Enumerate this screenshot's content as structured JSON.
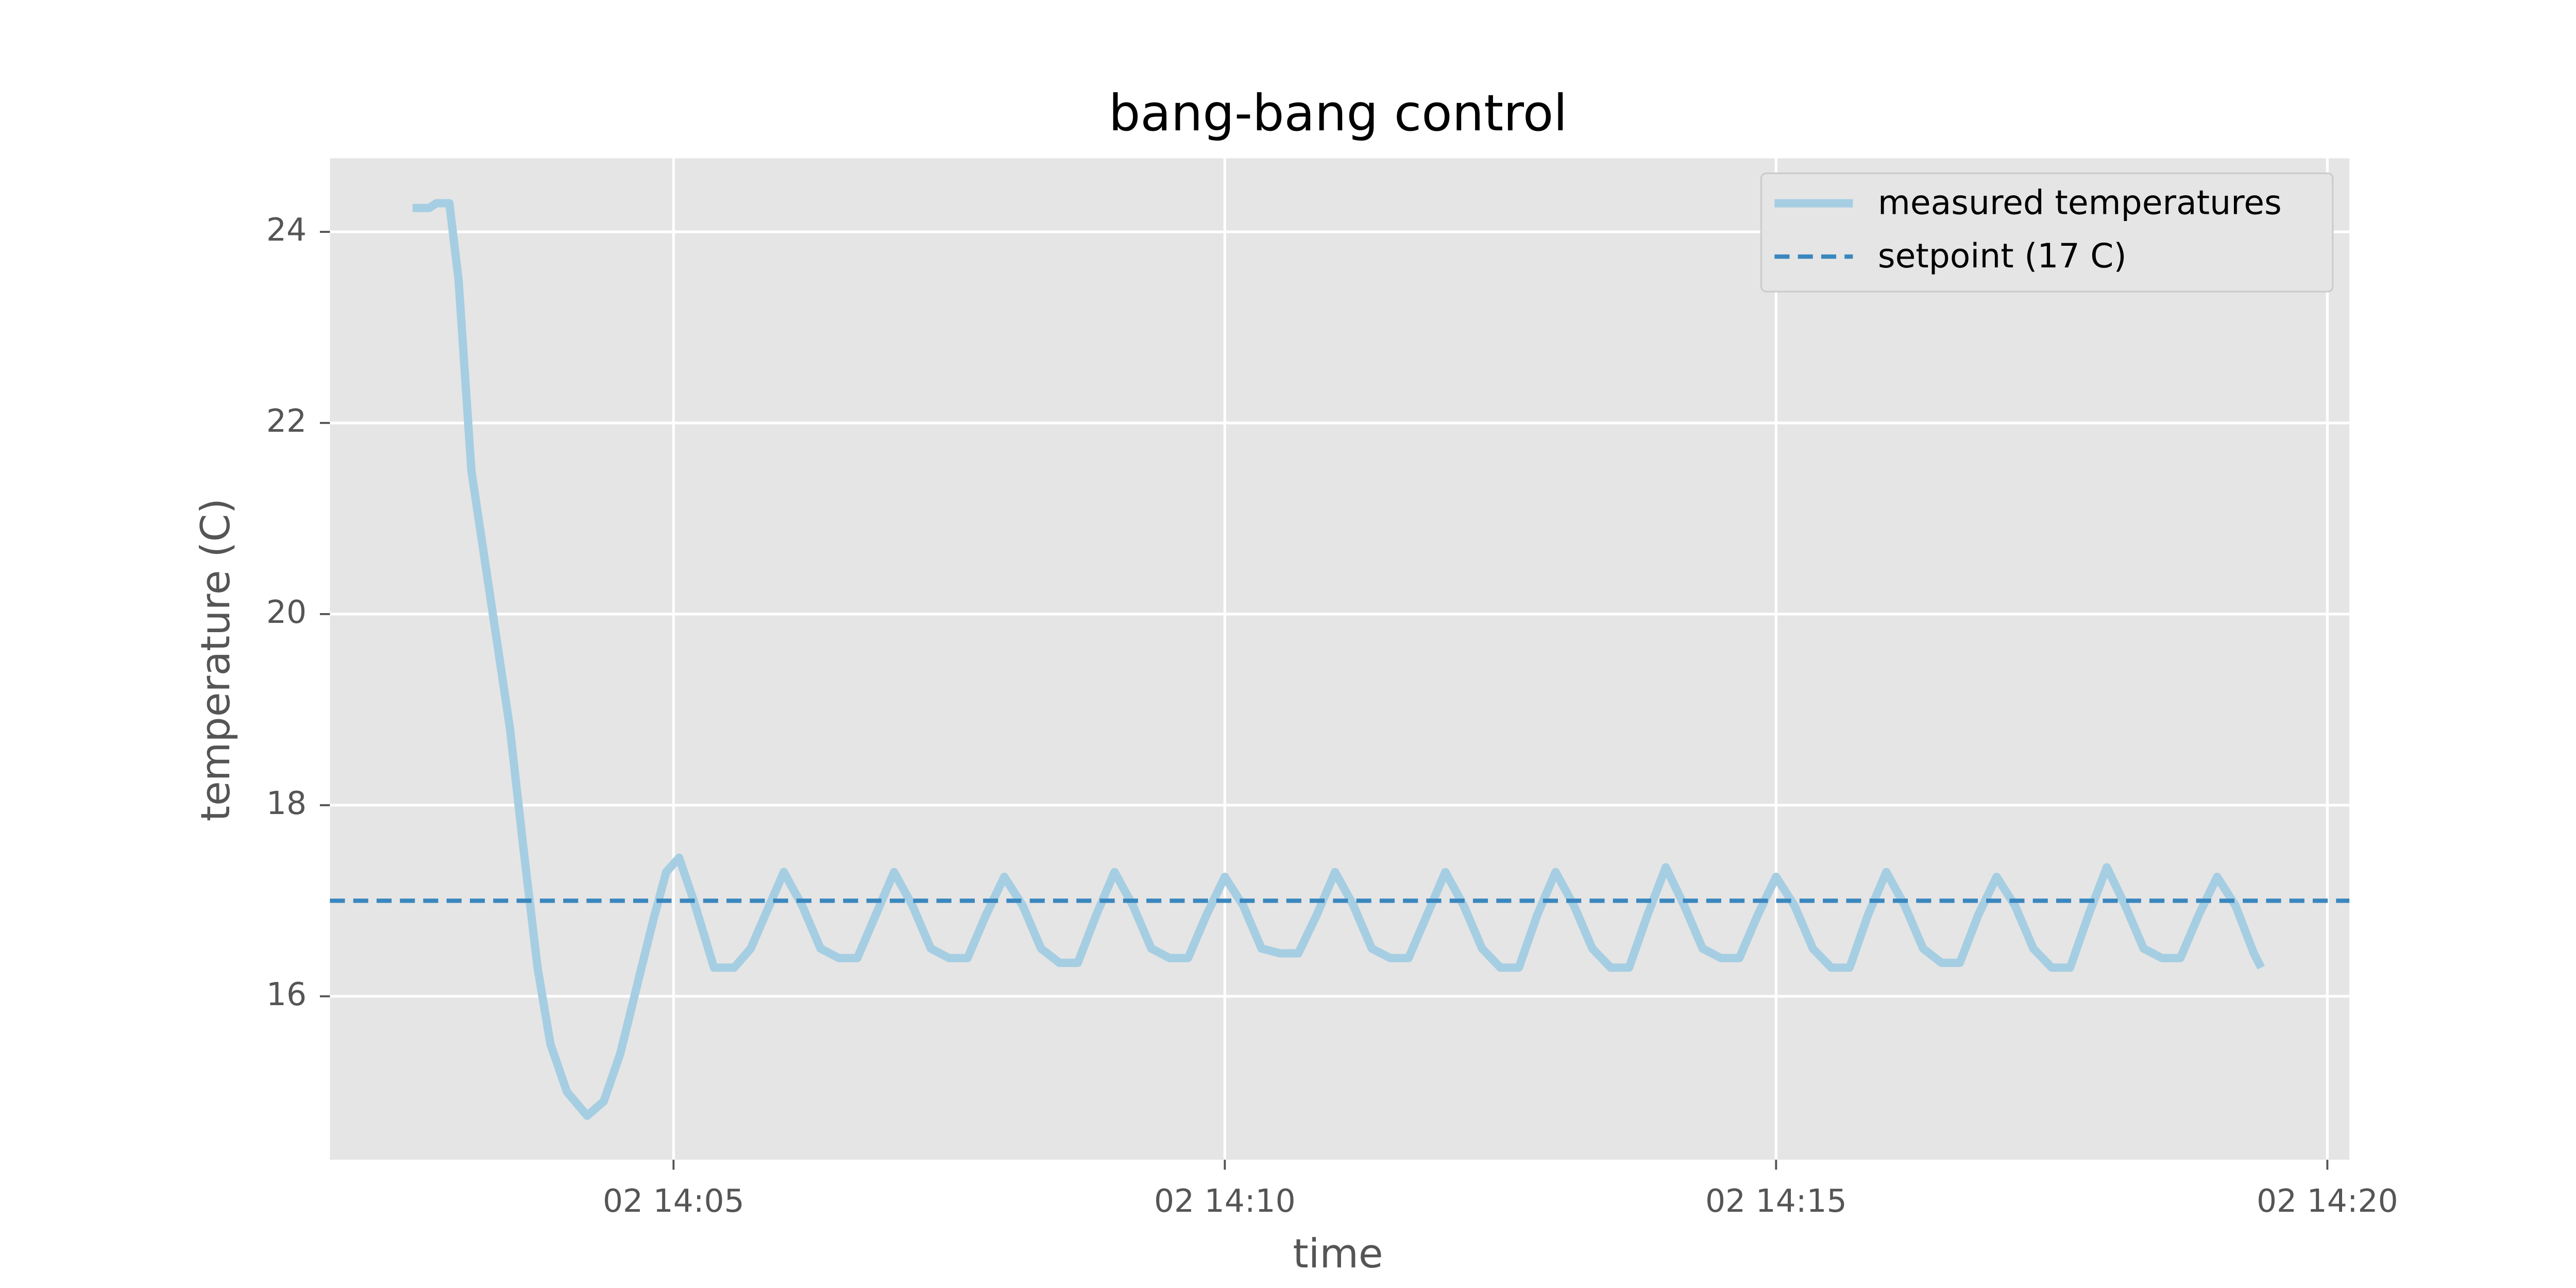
{
  "chart_data": {
    "type": "line",
    "title": "bang-bang control",
    "x_label": "time",
    "y_label": "temperature (C)",
    "series": [
      {
        "name": "measured temperatures",
        "color": "#a6cee3",
        "x": [
          "02 14:02:38",
          "02 14:02:47",
          "02 14:02:51",
          "02 14:02:58",
          "02 14:03:03",
          "02 14:03:10",
          "02 14:03:17",
          "02 14:03:24",
          "02 14:03:31",
          "02 14:03:38",
          "02 14:03:46",
          "02 14:03:53",
          "02 14:04:02",
          "02 14:04:13",
          "02 14:04:22",
          "02 14:04:31",
          "02 14:04:40",
          "02 14:04:49",
          "02 14:04:56",
          "02 14:05:03",
          "02 14:05:11",
          "02 14:05:22",
          "02 14:05:33",
          "02 14:05:42",
          "02 14:05:51",
          "02 14:06:00",
          "02 14:06:10",
          "02 14:06:20",
          "02 14:06:30",
          "02 14:06:40",
          "02 14:06:50",
          "02 14:07:00",
          "02 14:07:10",
          "02 14:07:20",
          "02 14:07:30",
          "02 14:07:40",
          "02 14:07:50",
          "02 14:08:00",
          "02 14:08:10",
          "02 14:08:20",
          "02 14:08:30",
          "02 14:08:40",
          "02 14:08:50",
          "02 14:09:00",
          "02 14:09:10",
          "02 14:09:20",
          "02 14:09:30",
          "02 14:09:40",
          "02 14:09:50",
          "02 14:10:00",
          "02 14:10:10",
          "02 14:10:20",
          "02 14:10:30",
          "02 14:10:40",
          "02 14:10:50",
          "02 14:11:00",
          "02 14:11:10",
          "02 14:11:20",
          "02 14:11:30",
          "02 14:11:40",
          "02 14:11:50",
          "02 14:12:00",
          "02 14:12:10",
          "02 14:12:20",
          "02 14:12:30",
          "02 14:12:40",
          "02 14:12:50",
          "02 14:13:00",
          "02 14:13:10",
          "02 14:13:20",
          "02 14:13:30",
          "02 14:13:40",
          "02 14:13:50",
          "02 14:14:00",
          "02 14:14:10",
          "02 14:14:20",
          "02 14:14:30",
          "02 14:14:40",
          "02 14:14:50",
          "02 14:15:00",
          "02 14:15:10",
          "02 14:15:20",
          "02 14:15:30",
          "02 14:15:40",
          "02 14:15:50",
          "02 14:16:00",
          "02 14:16:10",
          "02 14:16:20",
          "02 14:16:30",
          "02 14:16:40",
          "02 14:16:50",
          "02 14:17:00",
          "02 14:17:10",
          "02 14:17:20",
          "02 14:17:30",
          "02 14:17:40",
          "02 14:17:50",
          "02 14:18:00",
          "02 14:18:10",
          "02 14:18:20",
          "02 14:18:30",
          "02 14:18:40",
          "02 14:18:50",
          "02 14:19:00",
          "02 14:19:10",
          "02 14:19:20",
          "02 14:19:24"
        ],
        "values": [
          24.25,
          24.25,
          24.3,
          24.3,
          23.5,
          21.5,
          20.6,
          19.7,
          18.8,
          17.6,
          16.3,
          15.5,
          15.0,
          14.75,
          14.9,
          15.4,
          16.1,
          16.8,
          17.3,
          17.45,
          17.0,
          16.3,
          16.3,
          16.5,
          16.9,
          17.3,
          16.95,
          16.5,
          16.4,
          16.4,
          16.85,
          17.3,
          16.95,
          16.5,
          16.4,
          16.4,
          16.85,
          17.25,
          16.95,
          16.5,
          16.35,
          16.35,
          16.85,
          17.3,
          16.95,
          16.5,
          16.4,
          16.4,
          16.85,
          17.25,
          16.95,
          16.5,
          16.45,
          16.45,
          16.85,
          17.3,
          16.95,
          16.5,
          16.4,
          16.4,
          16.85,
          17.3,
          16.95,
          16.5,
          16.3,
          16.3,
          16.85,
          17.3,
          16.95,
          16.5,
          16.3,
          16.3,
          16.85,
          17.35,
          16.95,
          16.5,
          16.4,
          16.4,
          16.85,
          17.25,
          16.95,
          16.5,
          16.3,
          16.3,
          16.85,
          17.3,
          16.95,
          16.5,
          16.35,
          16.35,
          16.85,
          17.25,
          16.95,
          16.5,
          16.3,
          16.3,
          16.85,
          17.35,
          16.95,
          16.5,
          16.4,
          16.4,
          16.85,
          17.25,
          16.95,
          16.45,
          16.3
        ]
      }
    ],
    "setpoint": {
      "name": "setpoint (17 C)",
      "value": 17,
      "color": "#3a87be",
      "dashed": true
    },
    "xlim": [
      "02 14:01:53",
      "02 14:20:12"
    ],
    "xticks": [
      {
        "value": "02 14:05:00",
        "label": "02 14:05"
      },
      {
        "value": "02 14:10:00",
        "label": "02 14:10"
      },
      {
        "value": "02 14:15:00",
        "label": "02 14:15"
      },
      {
        "value": "02 14:20:00",
        "label": "02 14:20"
      }
    ],
    "ylim": [
      14.29,
      24.77
    ],
    "yticks": [
      16,
      18,
      20,
      22,
      24
    ],
    "grid": true,
    "legend": "upper right"
  }
}
